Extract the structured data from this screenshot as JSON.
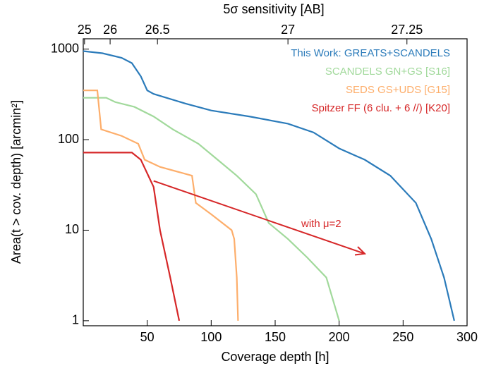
{
  "chart_data": {
    "type": "line",
    "xlabel": "Coverage depth [h]",
    "ylabel": "Area(t > cov. depth) [arcmin²]",
    "x2label": "5σ sensitivity [AB]",
    "xlim": [
      0,
      300
    ],
    "xticks": [
      50,
      100,
      150,
      200,
      250,
      300
    ],
    "ylim": [
      0.88,
      1300
    ],
    "yscale": "log",
    "yticks": [
      1,
      10,
      100,
      1000
    ],
    "x2ticks": [
      {
        "value": 1,
        "label": "25"
      },
      {
        "value": 21,
        "label": "26"
      },
      {
        "value": 58,
        "label": "26.5"
      },
      {
        "value": 160,
        "label": "27"
      },
      {
        "value": 253,
        "label": "27.25"
      }
    ],
    "series": [
      {
        "name": "This Work: GREATS+SCANDELS",
        "color": "#2b7bba",
        "x": [
          0,
          15,
          30,
          38,
          45,
          50,
          55,
          80,
          100,
          130,
          160,
          180,
          200,
          220,
          240,
          260,
          272,
          282,
          290
        ],
        "values": [
          950,
          900,
          800,
          700,
          500,
          350,
          320,
          250,
          210,
          180,
          150,
          120,
          80,
          60,
          40,
          20,
          8,
          3,
          1
        ]
      },
      {
        "name": "SCANDELS GN+GS [S16]",
        "color": "#a1d99b",
        "x": [
          0,
          18,
          25,
          40,
          55,
          70,
          90,
          105,
          120,
          135,
          145,
          160,
          175,
          190,
          200
        ],
        "values": [
          290,
          290,
          260,
          230,
          180,
          130,
          90,
          60,
          40,
          25,
          12,
          8,
          5,
          3,
          1
        ]
      },
      {
        "name": "SEDS GS+UDS [G15]",
        "color": "#fdae6b",
        "x": [
          0,
          11,
          14,
          30,
          43,
          48,
          60,
          85,
          88,
          100,
          116,
          118,
          120,
          121
        ],
        "values": [
          350,
          350,
          130,
          110,
          90,
          60,
          50,
          40,
          20,
          15,
          10,
          8,
          3,
          1
        ]
      },
      {
        "name": "Spitzer FF (6 clu. + 6 //) [K20]",
        "color": "#d62728",
        "x": [
          0,
          38,
          45,
          55,
          60,
          68,
          75
        ],
        "values": [
          72,
          72,
          60,
          30,
          10,
          3,
          1
        ]
      }
    ],
    "arrow": {
      "text": "with μ=2",
      "color": "#d62728",
      "x": [
        55,
        220
      ],
      "values": [
        35,
        5.5
      ]
    }
  }
}
